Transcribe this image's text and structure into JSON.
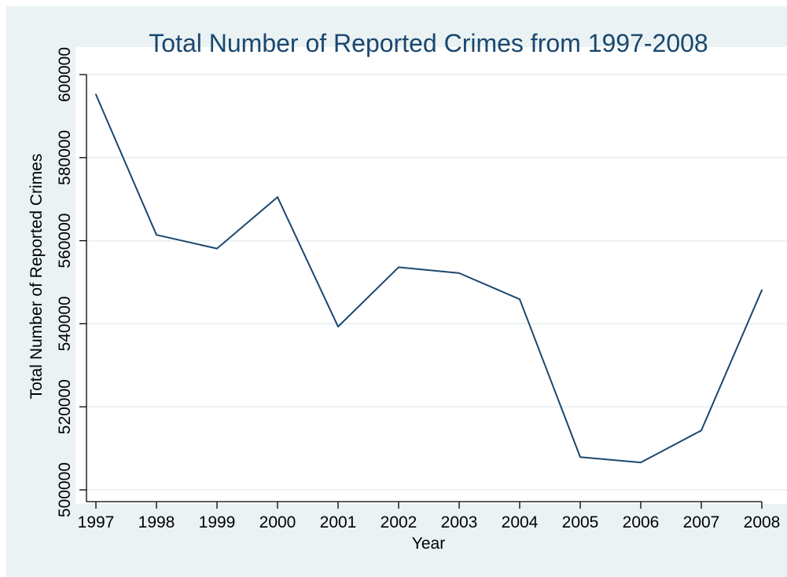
{
  "chart_data": {
    "type": "line",
    "title": "Total Number of Reported Crimes from 1997-2008",
    "xlabel": "Year",
    "ylabel": "Total Number of Reported Crimes",
    "x": [
      1997,
      1998,
      1999,
      2000,
      2001,
      2002,
      2003,
      2004,
      2005,
      2006,
      2007,
      2008
    ],
    "x_tick_labels": [
      "1997",
      "1998",
      "1999",
      "2000",
      "2001",
      "2002",
      "2003",
      "2004",
      "2005",
      "2006",
      "2007",
      "2008"
    ],
    "series": [
      {
        "values": [
          595200,
          561400,
          558100,
          570500,
          539300,
          553600,
          552200,
          545900,
          507900,
          506600,
          514300,
          548100
        ]
      }
    ],
    "y_ticks": [
      500000,
      520000,
      540000,
      560000,
      580000,
      600000
    ],
    "y_tick_labels": [
      "500000",
      "520000",
      "540000",
      "560000",
      "580000",
      "600000"
    ],
    "ylim": [
      500000,
      600000
    ],
    "xlim": [
      1997,
      2008
    ],
    "grid": "horizontal",
    "legend": "none",
    "colors": {
      "background": "#eaf2f3",
      "plot_area": "#ffffff",
      "gridline": "#eaf2f3",
      "line": "#1a476f",
      "title": "#1a476f",
      "axis": "#000000"
    }
  }
}
